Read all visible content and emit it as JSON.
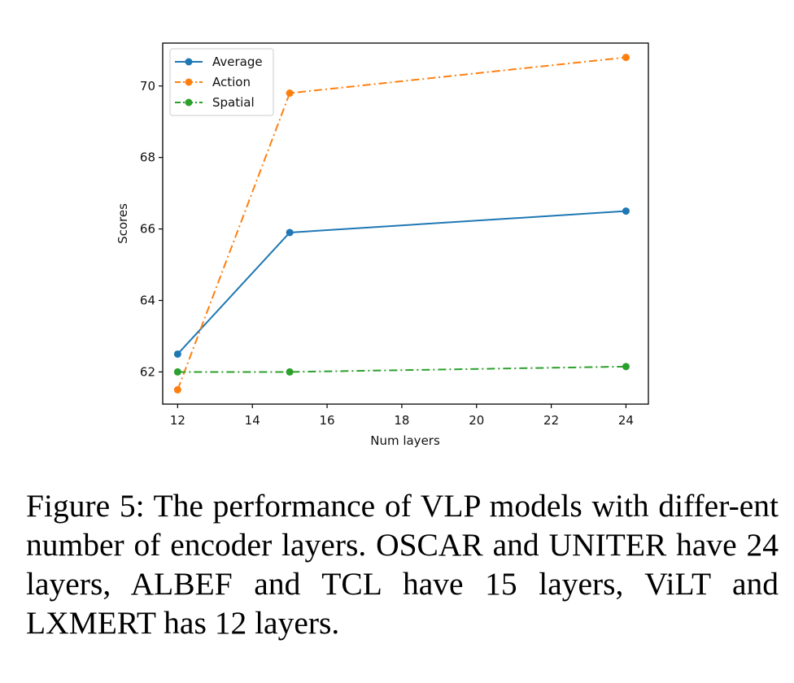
{
  "chart_data": {
    "type": "line",
    "title": "",
    "xlabel": "Num layers",
    "ylabel": "Scores",
    "x": [
      12,
      15,
      24
    ],
    "xlim": [
      11.6,
      24.6
    ],
    "ylim": [
      61.1,
      71.2
    ],
    "xticks": [
      12,
      14,
      16,
      18,
      20,
      22,
      24
    ],
    "yticks": [
      62,
      64,
      66,
      68,
      70
    ],
    "grid": false,
    "legend_position": "top-left",
    "series": [
      {
        "name": "Average",
        "values": [
          62.5,
          65.9,
          66.5
        ],
        "color": "#1f77b4",
        "linestyle": "solid",
        "marker": "circle"
      },
      {
        "name": "Action",
        "values": [
          61.5,
          69.8,
          70.8
        ],
        "color": "#ff7f0e",
        "linestyle": "dashdot",
        "marker": "circle"
      },
      {
        "name": "Spatial",
        "values": [
          62.0,
          62.0,
          62.15
        ],
        "color": "#2ca02c",
        "linestyle": "dashdot",
        "marker": "circle"
      }
    ]
  },
  "caption": {
    "text": "Figure 5: The performance of VLP models with differ-ent number of encoder layers. OSCAR and UNITER have 24 layers, ALBEF and TCL have 15 layers, ViLT and LXMERT has 12 layers."
  }
}
